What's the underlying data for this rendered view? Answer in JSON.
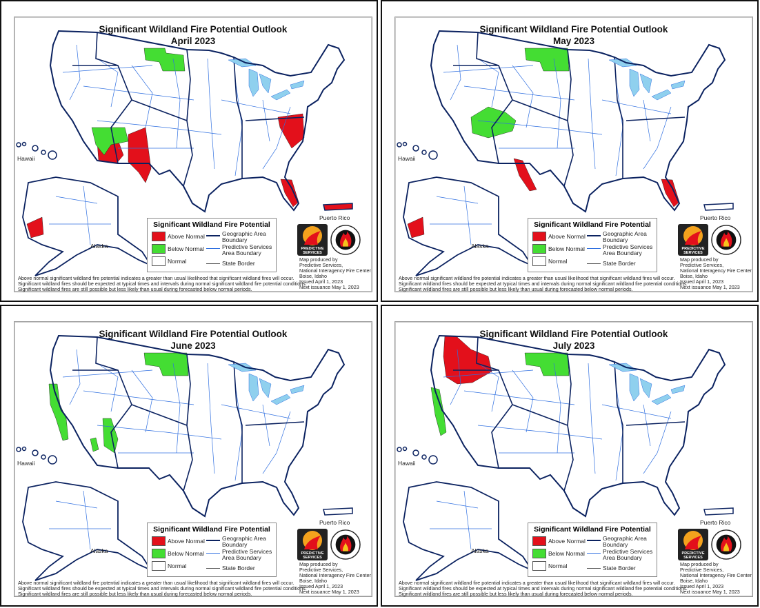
{
  "colors": {
    "above_normal": "#e3101b",
    "below_normal": "#44dd33",
    "normal": "#ffffff",
    "lakes": "#8fd0ee",
    "geographic_boundary": "#0b2260",
    "psa_boundary": "#2f6fe0",
    "state_border": "#555555"
  },
  "labels": {
    "hawaii": "Hawaii",
    "alaska": "Alaska",
    "puerto_rico": "Puerto Rico"
  },
  "legend": {
    "title": "Significant Wildland Fire Potential",
    "above_normal": "Above Normal",
    "below_normal": "Below Normal",
    "normal": "Normal",
    "geographic_area_1": "Geographic Area",
    "geographic_area_2": "Boundary",
    "psa_1": "Predictive Services",
    "psa_2": "Area Boundary",
    "state_border": "State Border"
  },
  "logos": {
    "predictive_services": "PREDICTIVE SERVICES",
    "nifc": "NATIONAL INTERAGENCY FIRE CENTER"
  },
  "footnote": [
    "Above normal significant wildland fire potential indicates a greater than usual likelihood that significant wildland fires will occur.",
    "Significant wildland fires should be expected at typical times and intervals during normal significant wildland fire potential conditions.",
    "Significant wildland fires are still possible but less likely than usual during forecasted below normal periods."
  ],
  "credits": [
    "Map produced by",
    "Predictive Services,",
    "National Interagency Fire Center",
    "Boise, Idaho",
    "Issued April 1, 2023",
    "Next issuance May 1, 2023"
  ],
  "panels": [
    {
      "title": "Significant Wildland Fire Potential Outlook",
      "month": "April 2023"
    },
    {
      "title": "Significant Wildland Fire Potential Outlook",
      "month": "May 2023"
    },
    {
      "title": "Significant Wildland Fire Potential Outlook",
      "month": "June 2023"
    },
    {
      "title": "Significant Wildland Fire Potential Outlook",
      "month": "July 2023"
    }
  ]
}
